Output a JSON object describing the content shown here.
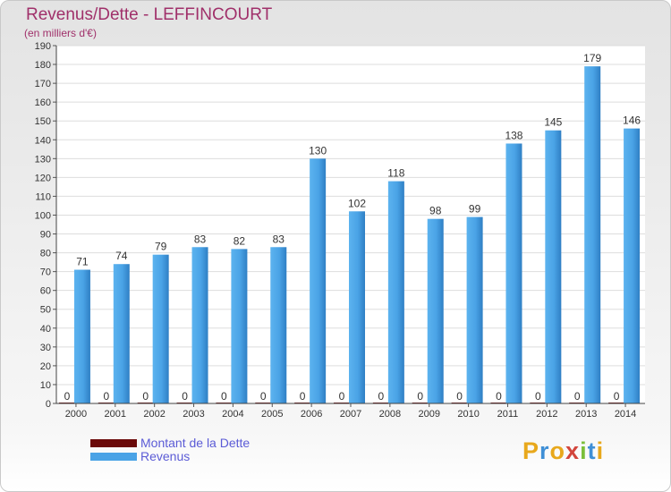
{
  "title": "Revenus/Dette - LEFFINCOURT",
  "subtitle": "(en milliers d'€)",
  "logo_text": "Proxiti",
  "chart_data": {
    "type": "bar",
    "categories": [
      "2000",
      "2001",
      "2002",
      "2003",
      "2004",
      "2005",
      "2006",
      "2007",
      "2008",
      "2009",
      "2010",
      "2011",
      "2012",
      "2013",
      "2014"
    ],
    "series": [
      {
        "name": "Montant de la Dette",
        "color": "#6b0a0a",
        "values": [
          0,
          0,
          0,
          0,
          0,
          0,
          0,
          0,
          0,
          0,
          0,
          0,
          0,
          0,
          0
        ]
      },
      {
        "name": "Revenus",
        "color": "#4aa3e6",
        "values": [
          71,
          74,
          79,
          83,
          82,
          83,
          130,
          102,
          118,
          98,
          99,
          138,
          145,
          179,
          146
        ]
      }
    ],
    "ylim": [
      0,
      190
    ],
    "ytick_step": 10,
    "grid": true,
    "legend_position": "bottom-left"
  }
}
